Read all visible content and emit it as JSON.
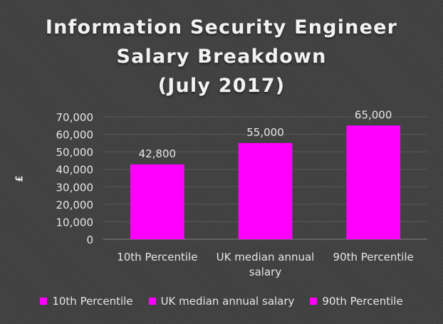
{
  "chart_data": {
    "type": "bar",
    "title_lines": [
      "Information Security Engineer",
      "Salary Breakdown",
      "(July 2017)"
    ],
    "ylabel": "£",
    "xlabel": "",
    "categories": [
      [
        "10th Percentile"
      ],
      [
        "UK median annual",
        "salary"
      ],
      [
        "90th Percentile"
      ]
    ],
    "values": [
      42800,
      55000,
      65000
    ],
    "value_labels": [
      "42,800",
      "55,000",
      "65,000"
    ],
    "ylim": [
      0,
      70000
    ],
    "yticks": [
      0,
      10000,
      20000,
      30000,
      40000,
      50000,
      60000,
      70000
    ],
    "ytick_labels": [
      "0",
      "10,000",
      "20,000",
      "30,000",
      "40,000",
      "50,000",
      "60,000",
      "70,000"
    ],
    "grid": true,
    "legend_position": "bottom",
    "legend": [
      "10th Percentile",
      "UK median annual salary",
      "90th Percentile"
    ],
    "colors": {
      "bar": "#ff00ff",
      "background": "#404040",
      "gridline": "#595959",
      "text": "#e6e6e6"
    }
  }
}
